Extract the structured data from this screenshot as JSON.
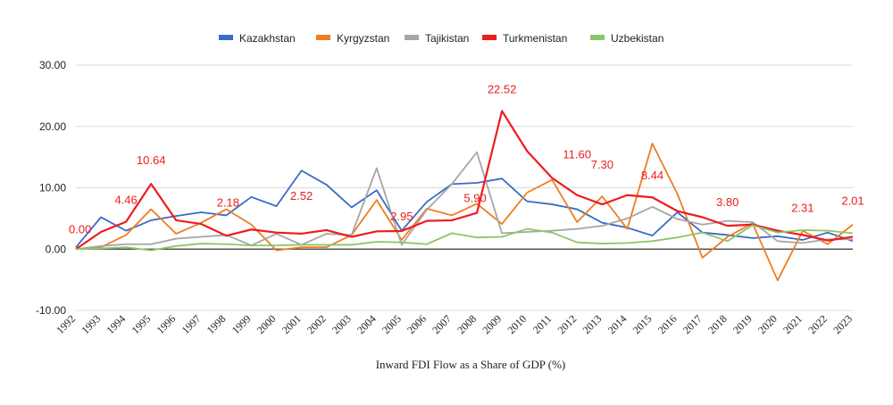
{
  "chart_data": {
    "type": "line",
    "title": "",
    "xlabel": "Inward FDI Flow as a Share of GDP (%)",
    "ylabel": "",
    "ylim": [
      -10,
      30
    ],
    "yticks": [
      -10,
      0,
      10,
      20,
      30
    ],
    "ytick_labels": [
      "-10.00",
      "0.00",
      "10.00",
      "20.00",
      "30.00"
    ],
    "grid": "horizontal",
    "legend_position": "top",
    "categories": [
      "1992",
      "1993",
      "1994",
      "1995",
      "1996",
      "1997",
      "1998",
      "1999",
      "2000",
      "2001",
      "2002",
      "2003",
      "2004",
      "2005",
      "2006",
      "2007",
      "2008",
      "2009",
      "2010",
      "2011",
      "2012",
      "2013",
      "2014",
      "2015",
      "2016",
      "2017",
      "2018",
      "2019",
      "2020",
      "2021",
      "2022",
      "2023"
    ],
    "series": [
      {
        "name": "Kazakhstan",
        "color": "#3a6bc7",
        "values": [
          0.3,
          5.2,
          3.0,
          4.7,
          5.4,
          6.0,
          5.5,
          8.5,
          7.0,
          12.8,
          10.5,
          6.8,
          9.6,
          3.0,
          7.7,
          10.6,
          10.8,
          11.5,
          7.8,
          7.3,
          6.5,
          4.3,
          3.5,
          2.2,
          6.0,
          2.7,
          2.3,
          1.8,
          2.1,
          1.5,
          2.7,
          1.3
        ]
      },
      {
        "name": "Kyrgyzstan",
        "color": "#ef7d1f",
        "values": [
          0.0,
          0.3,
          2.3,
          6.5,
          2.5,
          4.3,
          6.5,
          4.0,
          -0.2,
          0.3,
          0.3,
          2.3,
          8.0,
          1.5,
          6.6,
          5.5,
          7.4,
          4.1,
          9.2,
          11.3,
          4.4,
          8.6,
          3.3,
          17.2,
          9.0,
          -1.4,
          2.0,
          4.2,
          -5.1,
          3.0,
          0.8,
          4.0
        ]
      },
      {
        "name": "Tajikistan",
        "color": "#a6a6a6",
        "values": [
          0.0,
          0.5,
          0.8,
          0.8,
          1.7,
          2.0,
          2.3,
          0.6,
          2.5,
          0.7,
          2.5,
          2.3,
          13.2,
          0.7,
          6.4,
          10.6,
          15.8,
          2.6,
          2.8,
          3.0,
          3.3,
          3.8,
          5.0,
          6.9,
          4.9,
          4.0,
          4.6,
          4.4,
          1.3,
          1.0,
          1.6,
          1.6
        ]
      },
      {
        "name": "Turkmenistan",
        "color": "#ee1c1c",
        "values": [
          0.0,
          2.8,
          4.46,
          10.64,
          4.7,
          4.1,
          2.18,
          3.2,
          2.7,
          2.52,
          3.1,
          2.0,
          2.9,
          2.95,
          4.6,
          4.7,
          5.9,
          22.52,
          16.0,
          11.6,
          8.8,
          7.3,
          8.8,
          8.44,
          6.2,
          5.2,
          3.8,
          4.0,
          3.0,
          2.31,
          1.4,
          2.01
        ]
      },
      {
        "name": "Uzbekistan",
        "color": "#8cc66a",
        "values": [
          0.0,
          0.1,
          0.3,
          -0.2,
          0.5,
          0.9,
          0.8,
          0.6,
          0.6,
          0.7,
          0.7,
          0.7,
          1.2,
          1.1,
          0.8,
          2.6,
          1.9,
          2.0,
          3.3,
          2.7,
          1.1,
          0.9,
          1.0,
          1.3,
          1.9,
          2.7,
          1.3,
          3.9,
          2.7,
          3.1,
          3.0,
          2.6
        ]
      }
    ],
    "annotations": [
      {
        "series": "Turkmenistan",
        "category": "1992",
        "text": "0.00"
      },
      {
        "series": "Turkmenistan",
        "category": "1994",
        "text": "4.46"
      },
      {
        "series": "Turkmenistan",
        "category": "1995",
        "text": "10.64"
      },
      {
        "series": "Turkmenistan",
        "category": "1998",
        "text": "2.18"
      },
      {
        "series": "Turkmenistan",
        "category": "2001",
        "text": "2.52"
      },
      {
        "series": "Turkmenistan",
        "category": "2005",
        "text": "2.95"
      },
      {
        "series": "Turkmenistan",
        "category": "2008",
        "text": "5.90"
      },
      {
        "series": "Turkmenistan",
        "category": "2009",
        "text": "22.52"
      },
      {
        "series": "Turkmenistan",
        "category": "2011",
        "text": "11.60"
      },
      {
        "series": "Turkmenistan",
        "category": "2013",
        "text": "7.30"
      },
      {
        "series": "Turkmenistan",
        "category": "2015",
        "text": "8.44"
      },
      {
        "series": "Turkmenistan",
        "category": "2018",
        "text": "3.80"
      },
      {
        "series": "Turkmenistan",
        "category": "2021",
        "text": "2.31"
      },
      {
        "series": "Turkmenistan",
        "category": "2023",
        "text": "2.01"
      }
    ]
  }
}
